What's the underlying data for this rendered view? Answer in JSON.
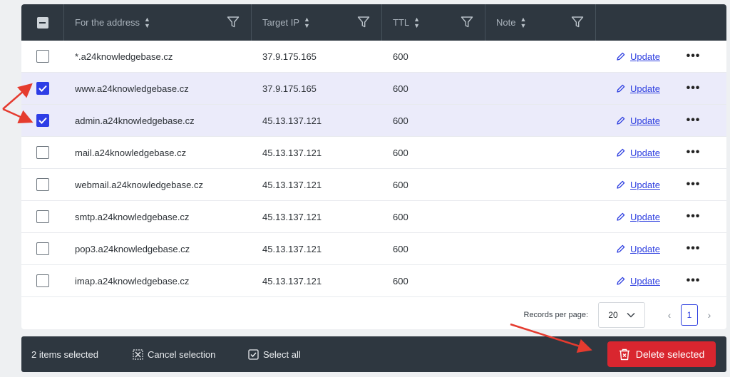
{
  "table": {
    "columns": [
      {
        "label": "For the address",
        "sortable": true,
        "filterable": true
      },
      {
        "label": "Target IP",
        "sortable": true,
        "filterable": true
      },
      {
        "label": "TTL",
        "sortable": true,
        "filterable": true
      },
      {
        "label": "Note",
        "sortable": true,
        "filterable": true
      }
    ],
    "rows": [
      {
        "address": "*.a24knowledgebase.cz",
        "ip": "37.9.175.165",
        "ttl": "600",
        "note": "",
        "checked": false,
        "action": "Update"
      },
      {
        "address": "www.a24knowledgebase.cz",
        "ip": "37.9.175.165",
        "ttl": "600",
        "note": "",
        "checked": true,
        "action": "Update"
      },
      {
        "address": "admin.a24knowledgebase.cz",
        "ip": "45.13.137.121",
        "ttl": "600",
        "note": "",
        "checked": true,
        "action": "Update"
      },
      {
        "address": "mail.a24knowledgebase.cz",
        "ip": "45.13.137.121",
        "ttl": "600",
        "note": "",
        "checked": false,
        "action": "Update"
      },
      {
        "address": "webmail.a24knowledgebase.cz",
        "ip": "45.13.137.121",
        "ttl": "600",
        "note": "",
        "checked": false,
        "action": "Update"
      },
      {
        "address": "smtp.a24knowledgebase.cz",
        "ip": "45.13.137.121",
        "ttl": "600",
        "note": "",
        "checked": false,
        "action": "Update"
      },
      {
        "address": "pop3.a24knowledgebase.cz",
        "ip": "45.13.137.121",
        "ttl": "600",
        "note": "",
        "checked": false,
        "action": "Update"
      },
      {
        "address": "imap.a24knowledgebase.cz",
        "ip": "45.13.137.121",
        "ttl": "600",
        "note": "",
        "checked": false,
        "action": "Update"
      }
    ]
  },
  "pagination": {
    "records_label": "Records per page:",
    "records_value": "20",
    "current_page": "1"
  },
  "selection_bar": {
    "count_text": "2 items selected",
    "cancel_label": "Cancel selection",
    "select_all_label": "Select all",
    "delete_label": "Delete selected"
  },
  "colors": {
    "header_bg": "#2e3740",
    "selected_row_bg": "#ebebfa",
    "link": "#2d3ee0",
    "checkbox_checked": "#2e3ee6",
    "delete_button": "#d9262f",
    "annotation_arrow": "#e53b2f"
  },
  "icons": {
    "sort": "sort-arrows-icon",
    "filter": "filter-funnel-icon",
    "edit": "pencil-icon",
    "more": "more-dots-icon",
    "cancel_selection": "grid-x-icon",
    "select_all": "checkbox-check-icon",
    "delete": "trash-x-icon",
    "page_prev": "chevron-left-icon",
    "page_next": "chevron-right-icon",
    "dropdown": "chevron-down-icon"
  }
}
